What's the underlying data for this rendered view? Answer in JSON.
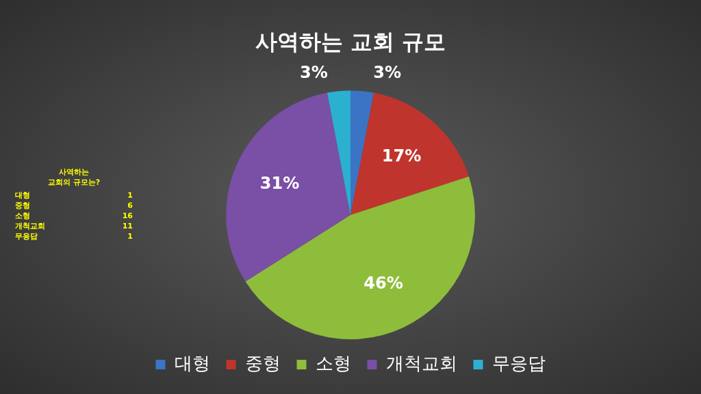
{
  "chart_data": [
    {
      "type": "pie",
      "title": "사역하는 교회 규모",
      "categories": [
        "대형",
        "중형",
        "소형",
        "개척교회",
        "무응답"
      ],
      "values": [
        3,
        17,
        46,
        31,
        3
      ],
      "value_labels": [
        "3%",
        "17%",
        "46%",
        "31%",
        "3%"
      ],
      "colors": [
        "#3b74c4",
        "#c0342e",
        "#8ebd3b",
        "#7a4fa6",
        "#2bb0d0"
      ],
      "legend": "bottom"
    },
    {
      "type": "other",
      "title": "사역하는\n교회의 규모는?",
      "categories": [
        "대형",
        "중형",
        "소형",
        "개척교회",
        "무응답"
      ],
      "values": [
        1,
        6,
        16,
        11,
        1
      ],
      "data_labels": true
    }
  ]
}
